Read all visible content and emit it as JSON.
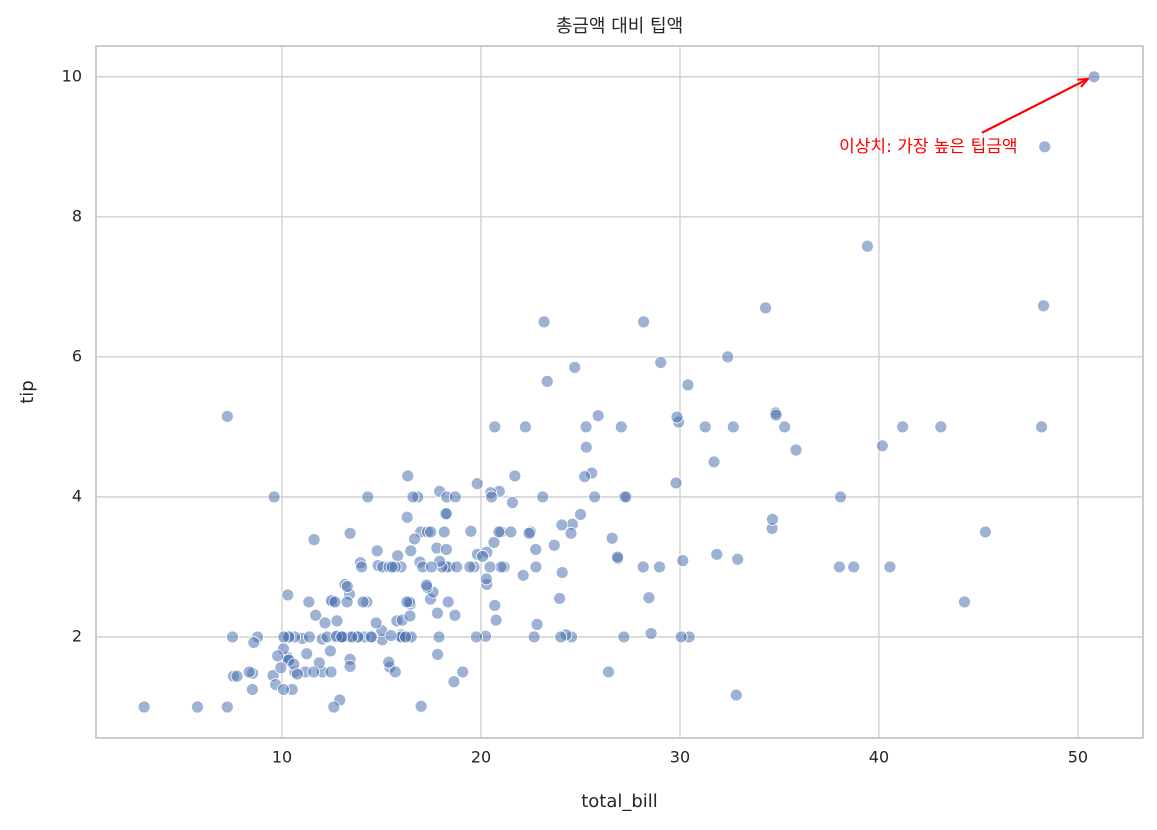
{
  "chart_data": {
    "type": "scatter",
    "title": "총금액 대비 팁액",
    "xlabel": "total_bill",
    "ylabel": "tip",
    "color": "#4c72b0",
    "grid": true,
    "xlim": [
      0.65,
      53.27
    ],
    "ylim": [
      0.557,
      10.44
    ],
    "xticks": [
      10,
      20,
      30,
      40,
      50
    ],
    "yticks": [
      2,
      4,
      6,
      8,
      10
    ],
    "annotation": {
      "text": "이상치: 가장 높은 팁금액",
      "color": "#ff0000",
      "xy": [
        50.81,
        10.0
      ],
      "xytext": [
        38,
        9
      ]
    },
    "x": [
      16.99,
      10.34,
      21.01,
      23.68,
      24.59,
      25.29,
      8.77,
      26.88,
      15.04,
      14.78,
      10.27,
      35.26,
      15.42,
      18.43,
      14.83,
      21.58,
      10.33,
      16.29,
      16.97,
      20.65,
      17.92,
      20.29,
      15.77,
      39.42,
      19.82,
      17.81,
      13.37,
      12.69,
      21.7,
      19.65,
      9.55,
      18.35,
      15.06,
      20.69,
      17.78,
      24.06,
      16.31,
      16.93,
      18.69,
      31.27,
      16.04,
      17.46,
      13.94,
      9.68,
      30.4,
      18.29,
      22.23,
      32.4,
      28.55,
      18.04,
      12.54,
      10.29,
      34.81,
      9.94,
      25.56,
      19.49,
      38.01,
      26.41,
      11.24,
      48.27,
      20.29,
      13.81,
      11.02,
      18.29,
      17.59,
      20.08,
      16.45,
      3.07,
      20.23,
      15.01,
      12.02,
      17.07,
      26.86,
      25.28,
      14.73,
      10.51,
      17.92,
      27.2,
      22.76,
      17.29,
      19.44,
      16.66,
      10.07,
      32.68,
      15.98,
      34.83,
      13.03,
      18.28,
      24.71,
      21.16,
      28.97,
      22.49,
      5.75,
      16.32,
      22.75,
      40.17,
      27.28,
      12.03,
      21.01,
      12.46,
      11.35,
      15.38,
      44.3,
      22.42,
      20.92,
      15.36,
      20.49,
      25.21,
      18.24,
      14.31,
      14.0,
      7.25,
      38.07,
      23.95,
      25.71,
      17.31,
      29.93,
      10.65,
      12.43,
      24.08,
      11.69,
      13.42,
      14.26,
      15.95,
      12.48,
      29.8,
      8.52,
      14.52,
      11.38,
      22.82,
      19.08,
      20.27,
      11.17,
      12.26,
      18.26,
      8.51,
      10.33,
      14.15,
      16.0,
      13.16,
      17.47,
      34.3,
      41.19,
      27.05,
      16.43,
      8.35,
      18.64,
      11.87,
      9.78,
      7.51,
      14.07,
      13.13,
      17.26,
      24.55,
      19.77,
      29.85,
      48.17,
      25.0,
      13.39,
      16.49,
      21.5,
      12.66,
      16.21,
      13.81,
      17.51,
      24.52,
      20.76,
      31.71,
      10.59,
      10.63,
      50.81,
      15.81,
      7.25,
      31.85,
      16.82,
      32.9,
      17.89,
      14.48,
      9.6,
      34.63,
      34.65,
      23.33,
      45.35,
      23.17,
      40.55,
      20.69,
      20.9,
      30.46,
      18.15,
      23.1,
      15.69,
      19.81,
      28.44,
      15.48,
      16.58,
      7.56,
      10.34,
      43.11,
      13.0,
      13.51,
      18.71,
      12.74,
      13.0,
      16.4,
      20.53,
      16.47,
      26.59,
      38.73,
      24.27,
      12.76,
      30.06,
      25.89,
      48.33,
      13.27,
      28.17,
      12.9,
      28.15,
      11.59,
      7.74,
      30.14,
      12.16,
      13.42,
      8.58,
      15.98,
      13.42,
      16.27,
      10.09,
      20.45,
      13.28,
      22.12,
      24.01,
      15.69,
      11.61,
      10.77,
      15.53,
      10.07,
      12.6,
      32.83,
      35.83,
      29.03,
      27.18,
      22.67,
      17.82,
      18.78
    ],
    "values": [
      1.01,
      1.66,
      3.5,
      3.31,
      3.61,
      4.71,
      2.0,
      3.12,
      1.96,
      3.23,
      1.71,
      5.0,
      1.57,
      3.0,
      3.02,
      3.92,
      1.67,
      3.71,
      3.5,
      3.35,
      4.08,
      2.75,
      2.23,
      7.58,
      3.18,
      2.34,
      2.0,
      2.0,
      4.3,
      3.0,
      1.45,
      2.5,
      3.0,
      2.45,
      3.27,
      3.6,
      2.0,
      3.07,
      2.31,
      5.0,
      2.24,
      2.54,
      3.06,
      1.32,
      5.6,
      3.0,
      5.0,
      6.0,
      2.05,
      3.0,
      2.5,
      2.6,
      5.2,
      1.56,
      4.34,
      3.51,
      3.0,
      1.5,
      1.76,
      6.73,
      3.21,
      2.0,
      1.98,
      3.76,
      2.64,
      3.15,
      2.47,
      1.0,
      2.01,
      2.09,
      1.97,
      3.0,
      3.14,
      5.0,
      2.2,
      1.25,
      3.08,
      4.0,
      3.0,
      2.71,
      3.0,
      3.4,
      1.83,
      5.0,
      2.03,
      5.17,
      2.0,
      4.0,
      5.85,
      3.0,
      3.0,
      3.5,
      1.0,
      4.3,
      3.25,
      4.73,
      4.0,
      1.5,
      3.0,
      1.5,
      2.5,
      3.0,
      2.5,
      3.48,
      4.08,
      1.64,
      4.06,
      4.29,
      3.76,
      4.0,
      3.0,
      1.0,
      4.0,
      2.55,
      4.0,
      3.5,
      5.07,
      1.5,
      1.8,
      2.92,
      2.31,
      1.68,
      2.5,
      2.0,
      2.52,
      4.2,
      1.48,
      2.0,
      2.0,
      2.18,
      1.5,
      2.83,
      1.5,
      2.0,
      3.25,
      1.25,
      2.0,
      2.0,
      2.0,
      2.75,
      3.5,
      6.7,
      5.0,
      5.0,
      2.3,
      1.5,
      1.36,
      1.63,
      1.73,
      2.0,
      2.5,
      2.0,
      2.74,
      2.0,
      2.0,
      5.14,
      5.0,
      3.75,
      2.61,
      2.0,
      3.5,
      2.5,
      2.0,
      2.0,
      3.0,
      3.48,
      2.24,
      4.5,
      1.61,
      2.0,
      10.0,
      3.16,
      5.15,
      3.18,
      4.0,
      3.11,
      2.0,
      2.0,
      4.0,
      3.55,
      3.68,
      5.65,
      3.5,
      6.5,
      3.0,
      5.0,
      3.5,
      2.0,
      3.5,
      4.0,
      1.5,
      4.19,
      2.56,
      2.02,
      4.0,
      1.44,
      2.0,
      5.0,
      2.0,
      2.0,
      4.0,
      2.01,
      2.0,
      2.5,
      4.0,
      3.23,
      3.41,
      3.0,
      2.03,
      2.23,
      2.0,
      5.16,
      9.0,
      2.5,
      6.5,
      1.1,
      3.0,
      1.5,
      1.44,
      3.09,
      2.2,
      3.48,
      1.92,
      3.0,
      1.58,
      2.5,
      2.0,
      3.0,
      2.72,
      2.88,
      2.0,
      3.0,
      3.39,
      1.47,
      3.0,
      1.25,
      1.0,
      1.17,
      4.67,
      5.92,
      2.0,
      2.0,
      1.75,
      3.0
    ]
  }
}
